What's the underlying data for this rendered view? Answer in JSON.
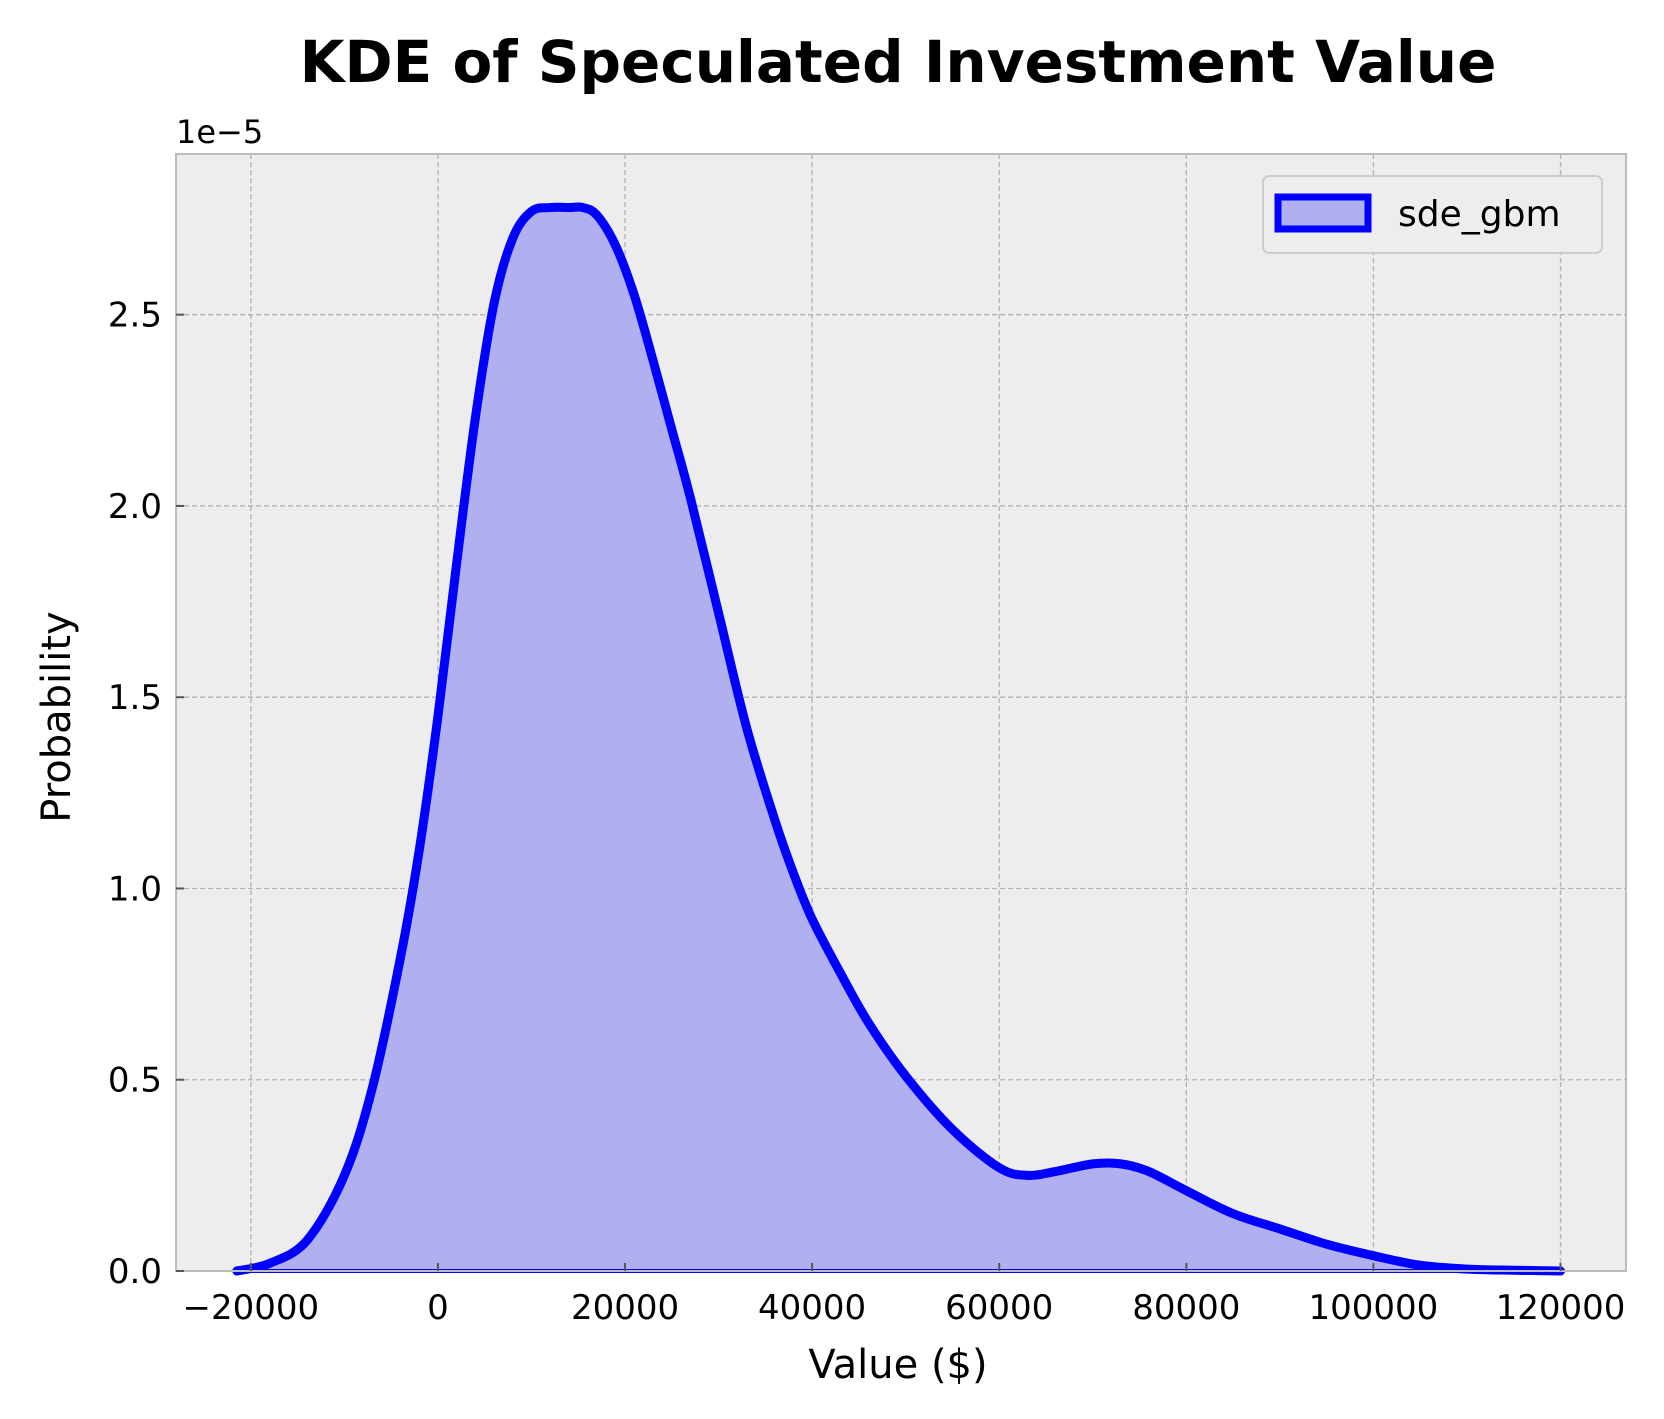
{
  "chart_data": {
    "type": "area",
    "title": "KDE of Speculated Investment Value",
    "xlabel": "Value ($)",
    "ylabel": "Probability",
    "y_offset_label": "1e−5",
    "y_scale_factor": 1e-05,
    "xlim": [
      -28000,
      127000
    ],
    "ylim": [
      0,
      2.92
    ],
    "x_ticks": [
      -20000,
      0,
      20000,
      40000,
      60000,
      80000,
      100000,
      120000
    ],
    "x_tick_labels": [
      "−20000",
      "0",
      "20000",
      "40000",
      "60000",
      "80000",
      "100000",
      "120000"
    ],
    "y_ticks": [
      0,
      0.5,
      1.0,
      1.5,
      2.0,
      2.5
    ],
    "y_tick_labels": [
      "0.0",
      "0.5",
      "1.0",
      "1.5",
      "2.0",
      "2.5"
    ],
    "grid": true,
    "legend_position": "top-right",
    "series": [
      {
        "name": "sde_gbm",
        "line_color": "#0000ff",
        "fill_color": "#b0b0f0",
        "x": [
          -21500,
          -18000,
          -14000,
          -10000,
          -7000,
          -4000,
          -2000,
          0,
          2000,
          4000,
          6000,
          8000,
          10000,
          12000,
          14000,
          15500,
          17000,
          19000,
          21000,
          23000,
          25000,
          27000,
          30000,
          33000,
          36000,
          38000,
          40000,
          43000,
          46000,
          50000,
          55000,
          60000,
          63000,
          66000,
          70000,
          73000,
          76000,
          80000,
          85000,
          90000,
          95000,
          100000,
          105000,
          110000,
          115000,
          120000
        ],
        "y": [
          0.0,
          0.02,
          0.08,
          0.25,
          0.48,
          0.82,
          1.1,
          1.45,
          1.85,
          2.23,
          2.53,
          2.7,
          2.77,
          2.78,
          2.78,
          2.78,
          2.76,
          2.68,
          2.55,
          2.38,
          2.2,
          2.02,
          1.72,
          1.42,
          1.18,
          1.04,
          0.92,
          0.78,
          0.65,
          0.51,
          0.37,
          0.27,
          0.25,
          0.26,
          0.28,
          0.28,
          0.26,
          0.21,
          0.15,
          0.11,
          0.07,
          0.04,
          0.015,
          0.005,
          0.002,
          0.0
        ]
      }
    ]
  }
}
